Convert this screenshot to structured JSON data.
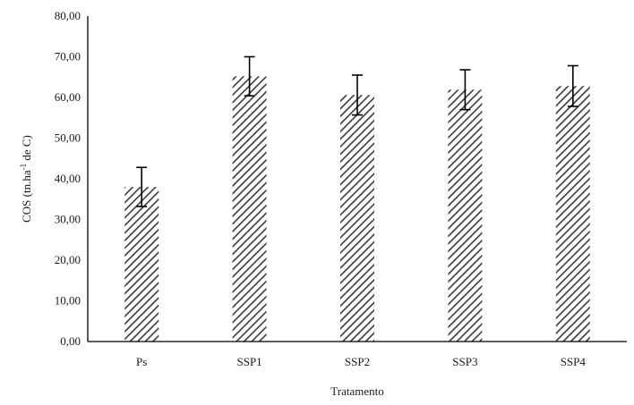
{
  "chart_data": {
    "type": "bar",
    "categories": [
      "Ps",
      "SSP1",
      "SSP2",
      "SSP3",
      "SSP4"
    ],
    "values": [
      38.0,
      65.2,
      60.6,
      61.9,
      62.8
    ],
    "error": [
      4.8,
      4.8,
      4.9,
      4.9,
      5.0
    ],
    "xlabel": "Tratamento",
    "ylabel": {
      "prefix": "COS (tn.ha",
      "sup": "-1",
      "suffix": " de C)"
    },
    "ylim": [
      0,
      80
    ],
    "yticks": [
      "0,00",
      "10,00",
      "20,00",
      "30,00",
      "40,00",
      "50,00",
      "60,00",
      "70,00",
      "80,00"
    ],
    "yticks_values": [
      0,
      10,
      20,
      30,
      40,
      50,
      60,
      70,
      80
    ],
    "grid": false,
    "bar_fill": "diagonal-hatch",
    "colors": {
      "hatch": "#3a3a3a",
      "background": "#ffffff",
      "axis": "#000000"
    }
  }
}
